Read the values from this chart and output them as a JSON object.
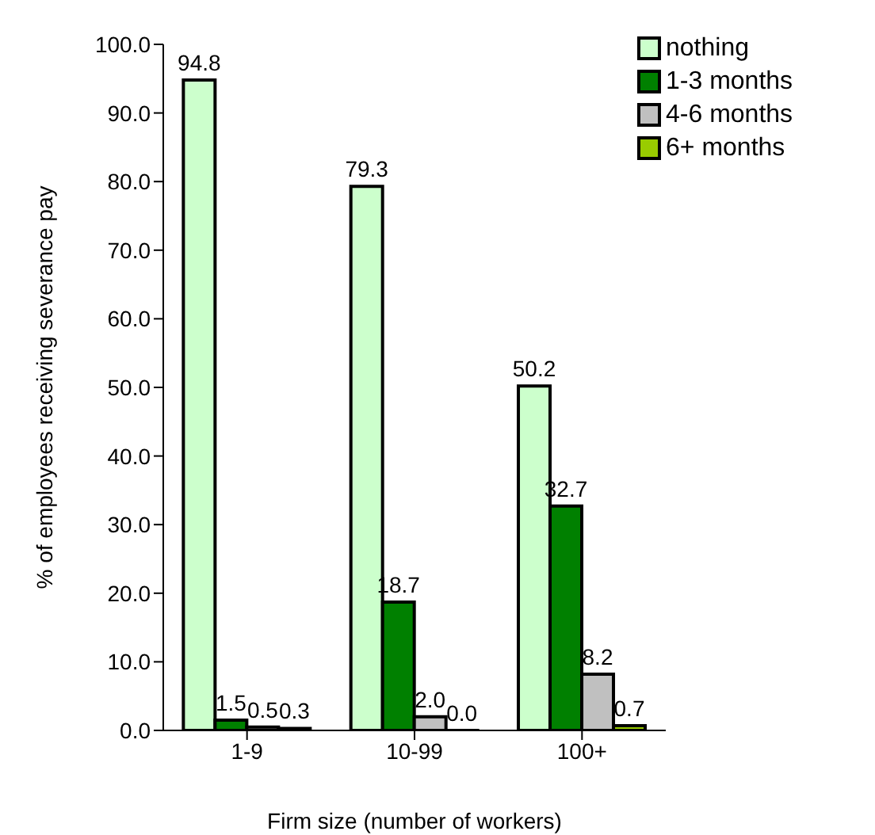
{
  "chart_data": {
    "type": "bar",
    "xlabel": "Firm size (number of workers)",
    "ylabel": "% of employees receiving severance pay",
    "categories": [
      "1-9",
      "10-99",
      "100+"
    ],
    "series": [
      {
        "name": "nothing",
        "color": "#ccffcc",
        "values": [
          94.8,
          79.3,
          50.2
        ],
        "value_labels": [
          "94.8",
          "79.3",
          "50.2"
        ]
      },
      {
        "name": "1-3 months",
        "color": "#008000",
        "values": [
          1.5,
          18.7,
          32.7
        ],
        "value_labels": [
          "1.5",
          "18.7",
          "32.7"
        ]
      },
      {
        "name": "4-6 months",
        "color": "#c0c0c0",
        "values": [
          0.5,
          2.0,
          8.2
        ],
        "value_labels": [
          "0.5",
          "2.0",
          "8.2"
        ]
      },
      {
        "name": "6+ months",
        "color": "#99cc00",
        "values": [
          0.3,
          0.0,
          0.7
        ],
        "value_labels": [
          "0.3",
          "0.0",
          "0.7"
        ]
      }
    ],
    "ylim": [
      0,
      100
    ],
    "yticks": [
      {
        "value": 0,
        "label": "0.0"
      },
      {
        "value": 10,
        "label": "10.0"
      },
      {
        "value": 20,
        "label": "20.0"
      },
      {
        "value": 30,
        "label": "30.0"
      },
      {
        "value": 40,
        "label": "40.0"
      },
      {
        "value": 50,
        "label": "50.0"
      },
      {
        "value": 60,
        "label": "60.0"
      },
      {
        "value": 70,
        "label": "70.0"
      },
      {
        "value": 80,
        "label": "80.0"
      },
      {
        "value": 90,
        "label": "90.0"
      },
      {
        "value": 100,
        "label": "100.0"
      }
    ],
    "legend": "top right",
    "grid": false
  }
}
